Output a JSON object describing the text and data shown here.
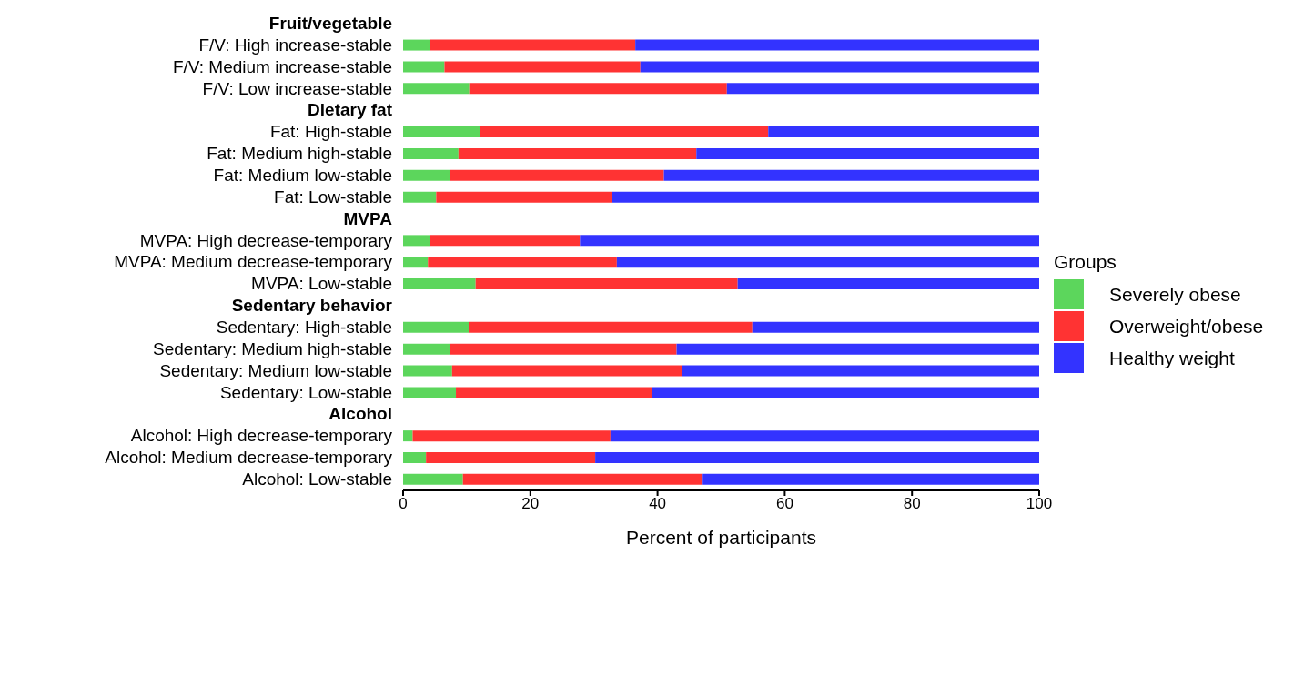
{
  "chart_data": {
    "type": "bar",
    "orientation": "horizontal",
    "stacked": true,
    "xlabel": "Percent of participants",
    "legend_title": "Groups",
    "legend": "right",
    "grid": false,
    "categories": [
      "Fruit/vegetable",
      "F/V: High increase-stable",
      "F/V: Medium increase-stable",
      "F/V: Low increase-stable",
      "Dietary fat",
      "Fat: High-stable",
      "Fat: Medium high-stable",
      "Fat: Medium low-stable",
      "Fat: Low-stable",
      "MVPA",
      "MVPA: High decrease-temporary",
      "MVPA: Medium decrease-temporary",
      "MVPA: Low-stable",
      "Sedentary behavior",
      "Sedentary: High-stable",
      "Sedentary: Medium high-stable",
      "Sedentary: Medium low-stable",
      "Sedentary: Low-stable",
      "Alcohol",
      "Alcohol: High decrease-temporary",
      "Alcohol: Medium decrease-temporary",
      "Alcohol: Low-stable"
    ],
    "series": [
      {
        "name": "Severely obese",
        "color": "#5cd65c",
        "values": [
          null,
          4.2,
          6.5,
          10.4,
          null,
          12.1,
          8.7,
          7.4,
          5.2,
          null,
          4.2,
          3.9,
          11.4,
          null,
          10.3,
          7.4,
          7.7,
          8.3,
          null,
          1.5,
          3.6,
          9.4
        ]
      },
      {
        "name": "Overweight/obese",
        "color": "#ff3333",
        "values": [
          null,
          32.3,
          30.8,
          40.5,
          null,
          45.3,
          37.4,
          33.6,
          27.7,
          null,
          23.6,
          29.7,
          41.2,
          null,
          44.6,
          35.6,
          36.1,
          30.8,
          null,
          31.1,
          26.6,
          37.7
        ]
      },
      {
        "name": "Healthy weight",
        "color": "#3333ff",
        "values": [
          null,
          63.5,
          62.7,
          49.1,
          null,
          42.6,
          53.9,
          59.0,
          67.1,
          null,
          72.2,
          66.4,
          47.4,
          null,
          45.1,
          57.0,
          56.2,
          60.9,
          null,
          67.4,
          69.8,
          52.9
        ]
      }
    ],
    "xlim": [
      0,
      100
    ],
    "xticks": [
      0,
      20,
      40,
      60,
      80,
      100
    ]
  }
}
